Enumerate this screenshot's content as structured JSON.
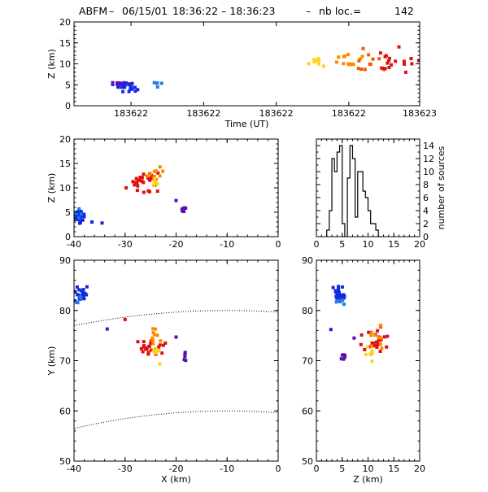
{
  "title": {
    "station": "ABFM",
    "date": "06/15/01",
    "time_range": "18:36:22 – 18:36:23",
    "count_label": "nb loc.=",
    "count": "142"
  },
  "colors": {
    "violet": "#5a0fb4",
    "blue": "#1428e0",
    "lightblue": "#1e7ae8",
    "yellow": "#ffd21e",
    "orange": "#ff8a00",
    "darkorange": "#f05a00",
    "red": "#e01010"
  },
  "chart_data": [
    {
      "id": "time_height",
      "type": "scatter",
      "xlabel": "Time (UT)",
      "ylabel": "Z (km)",
      "xlim": [
        0,
        1
      ],
      "ylim": [
        0,
        20
      ],
      "xtick_values": [
        0.165,
        0.375,
        0.585,
        0.795,
        1.0
      ],
      "xtick_labels": [
        "183622",
        "183622",
        "183622",
        "183622",
        "183623"
      ],
      "yticks": [
        0,
        5,
        10,
        15,
        20
      ],
      "clusters": [
        {
          "color": "violet",
          "x": [
            0.1,
            0.16
          ],
          "y": [
            4.8,
            5.8
          ],
          "n": 14
        },
        {
          "color": "blue",
          "x": [
            0.12,
            0.19
          ],
          "y": [
            3.0,
            5.8
          ],
          "n": 20
        },
        {
          "color": "lightblue",
          "x": [
            0.23,
            0.26
          ],
          "y": [
            4.2,
            6.0
          ],
          "n": 5
        },
        {
          "color": "yellow",
          "x": [
            0.67,
            0.73
          ],
          "y": [
            8.8,
            12.0
          ],
          "n": 9
        },
        {
          "color": "orange",
          "x": [
            0.73,
            0.85
          ],
          "y": [
            8.0,
            14.0
          ],
          "n": 14
        },
        {
          "color": "darkorange",
          "x": [
            0.78,
            0.92
          ],
          "y": [
            7.5,
            14.0
          ],
          "n": 12
        },
        {
          "color": "red",
          "x": [
            0.86,
            1.0
          ],
          "y": [
            7.0,
            14.5
          ],
          "n": 18
        }
      ]
    },
    {
      "id": "xz",
      "type": "scatter",
      "xlabel": "",
      "ylabel": "Z (km)",
      "xlim": [
        -40,
        0
      ],
      "ylim": [
        0,
        20
      ],
      "xticks": [
        -40,
        -30,
        -20,
        -10,
        0
      ],
      "yticks": [
        0,
        5,
        10,
        15,
        20
      ],
      "clusters": [
        {
          "color": "blue",
          "x": [
            -40,
            -37.5
          ],
          "y": [
            2.0,
            6.0
          ],
          "n": 26
        },
        {
          "color": "lightblue",
          "x": [
            -40,
            -38.5
          ],
          "y": [
            3.5,
            6.0
          ],
          "n": 5
        },
        {
          "color": "violet",
          "x": [
            -19,
            -18
          ],
          "y": [
            4.5,
            6.0
          ],
          "n": 6
        },
        {
          "color": "red",
          "x": [
            -30,
            -22
          ],
          "y": [
            8.0,
            13.5
          ],
          "n": 26
        },
        {
          "color": "orange",
          "x": [
            -26,
            -22
          ],
          "y": [
            10.0,
            14.5
          ],
          "n": 10
        },
        {
          "color": "yellow",
          "x": [
            -25,
            -23.5
          ],
          "y": [
            9.5,
            12.0
          ],
          "n": 6
        }
      ],
      "points": [
        {
          "color": "blue",
          "x": -34.5,
          "y": 2.8
        },
        {
          "color": "violet",
          "x": -20.0,
          "y": 7.4
        },
        {
          "color": "blue",
          "x": -36.5,
          "y": 3.0
        }
      ]
    },
    {
      "id": "histogram",
      "type": "bar",
      "xlabel": "",
      "ylabel": "number of sources",
      "xlim": [
        0,
        20
      ],
      "ylim": [
        0,
        15
      ],
      "xticks": [
        0,
        5,
        10,
        15,
        20
      ],
      "yticks": [
        0,
        2,
        4,
        6,
        8,
        10,
        12,
        14
      ],
      "bin_width": 0.5,
      "bin_start": 2.0,
      "counts": [
        1,
        4,
        12,
        10,
        13,
        14,
        2,
        0,
        9,
        14,
        12,
        3,
        10,
        10,
        7,
        6,
        4,
        2,
        2,
        1,
        0
      ]
    },
    {
      "id": "xy",
      "type": "scatter",
      "xlabel": "X (km)",
      "ylabel": "Y (km)",
      "xlim": [
        -40,
        0
      ],
      "ylim": [
        50,
        90
      ],
      "xticks": [
        -40,
        -30,
        -20,
        -10,
        0
      ],
      "yticks": [
        50,
        60,
        70,
        80,
        90
      ],
      "clusters": [
        {
          "color": "blue",
          "x": [
            -40,
            -37
          ],
          "y": [
            81.5,
            85.0
          ],
          "n": 26
        },
        {
          "color": "lightblue",
          "x": [
            -40,
            -38.5
          ],
          "y": [
            81.0,
            83.0
          ],
          "n": 5
        },
        {
          "color": "red",
          "x": [
            -28,
            -22
          ],
          "y": [
            71.0,
            74.5
          ],
          "n": 26
        },
        {
          "color": "orange",
          "x": [
            -25.5,
            -23
          ],
          "y": [
            73.0,
            77.5
          ],
          "n": 10
        },
        {
          "color": "yellow",
          "x": [
            -25,
            -23
          ],
          "y": [
            70.0,
            72.5
          ],
          "n": 6
        },
        {
          "color": "violet",
          "x": [
            -18.8,
            -17.8
          ],
          "y": [
            69.5,
            72.0
          ],
          "n": 6
        }
      ],
      "points": [
        {
          "color": "blue",
          "x": -33.5,
          "y": 76.3
        },
        {
          "color": "red",
          "x": -30.0,
          "y": 78.2
        },
        {
          "color": "violet",
          "x": -20.0,
          "y": 74.7
        },
        {
          "color": "yellow",
          "x": -23.2,
          "y": 69.3
        }
      ],
      "range_arcs": [
        {
          "center": [
            -10,
            -70
          ],
          "radius": 150
        },
        {
          "center": [
            -10,
            -70
          ],
          "radius": 130
        }
      ]
    },
    {
      "id": "zy",
      "type": "scatter",
      "xlabel": "Z (km)",
      "ylabel": "",
      "xlim": [
        0,
        20
      ],
      "ylim": [
        50,
        90
      ],
      "xticks": [
        0,
        5,
        10,
        15,
        20
      ],
      "yticks": [
        50,
        60,
        70,
        80,
        90
      ],
      "clusters": [
        {
          "color": "blue",
          "x": [
            3.0,
            6.0
          ],
          "y": [
            81.0,
            85.0
          ],
          "n": 26
        },
        {
          "color": "lightblue",
          "x": [
            3.5,
            5.5
          ],
          "y": [
            81.0,
            83.0
          ],
          "n": 5
        },
        {
          "color": "violet",
          "x": [
            4.5,
            6.0
          ],
          "y": [
            69.5,
            71.5
          ],
          "n": 6
        },
        {
          "color": "red",
          "x": [
            8.0,
            14.0
          ],
          "y": [
            71.0,
            77.0
          ],
          "n": 26
        },
        {
          "color": "orange",
          "x": [
            10.0,
            14.5
          ],
          "y": [
            72.0,
            78.0
          ],
          "n": 10
        },
        {
          "color": "yellow",
          "x": [
            9.0,
            12.0
          ],
          "y": [
            69.0,
            73.0
          ],
          "n": 6
        }
      ],
      "points": [
        {
          "color": "blue",
          "x": 2.8,
          "y": 76.2
        },
        {
          "color": "violet",
          "x": 7.3,
          "y": 74.5
        }
      ]
    }
  ]
}
